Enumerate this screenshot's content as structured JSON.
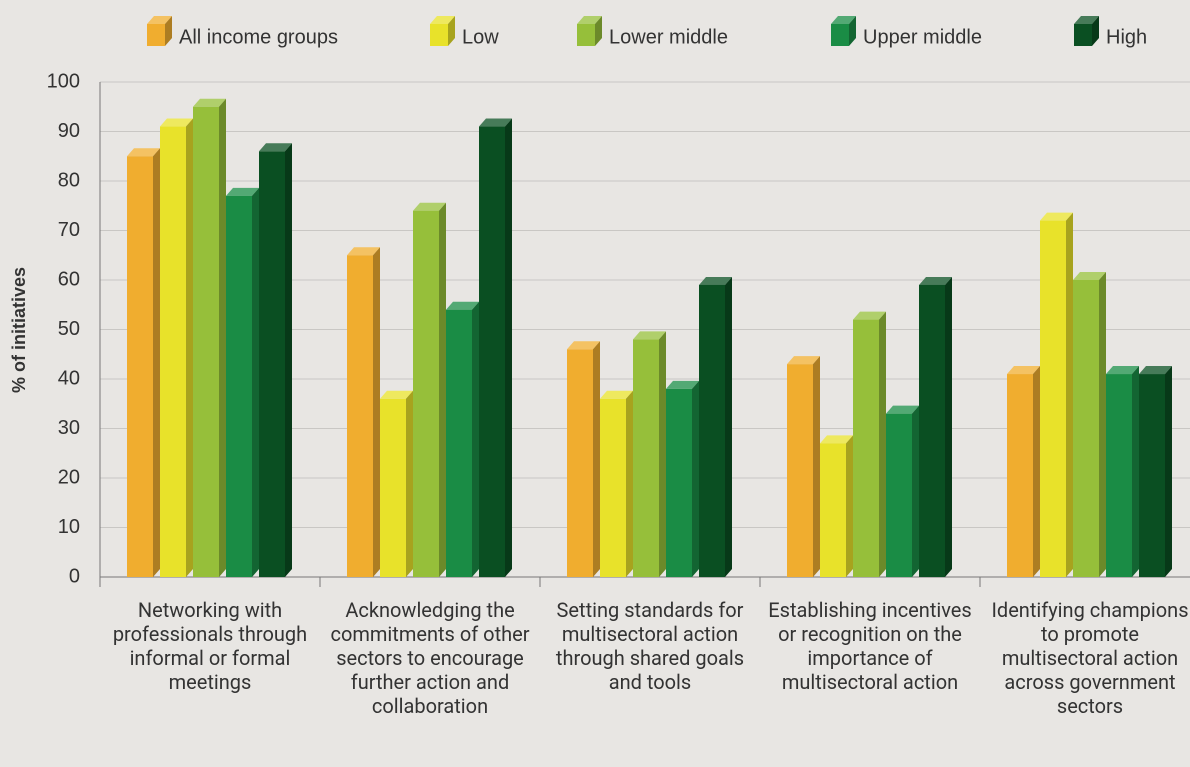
{
  "chart_data": {
    "type": "bar3d",
    "y_label": "% of initiatives",
    "categories": [
      "Networking with professionals through informal or formal meetings",
      "Acknowledging the commitments of other sectors to encourage further action and collaboration",
      "Setting standards for multisectoral action through shared goals and tools",
      "Establishing incentives or recognition on the importance of multisectoral action",
      "Identifying champions to promote multisectoral action across government sectors"
    ],
    "series": [
      {
        "name": "All income groups",
        "color": "#f0ad2f",
        "values": [
          85,
          65,
          46,
          43,
          41
        ]
      },
      {
        "name": "Low",
        "color": "#e8e22a",
        "values": [
          91,
          36,
          36,
          27,
          72
        ]
      },
      {
        "name": "Lower middle",
        "color": "#96bf3a",
        "values": [
          95,
          74,
          48,
          52,
          60
        ]
      },
      {
        "name": "Upper middle",
        "color": "#1a8c45",
        "values": [
          77,
          54,
          38,
          33,
          41
        ]
      },
      {
        "name": "High",
        "color": "#0a4f22",
        "values": [
          86,
          91,
          59,
          59,
          41
        ]
      }
    ],
    "ylim": [
      0,
      100
    ],
    "yticks": [
      0,
      10,
      20,
      30,
      40,
      50,
      60,
      70,
      80,
      90,
      100
    ],
    "grid": true,
    "legend": "top"
  }
}
